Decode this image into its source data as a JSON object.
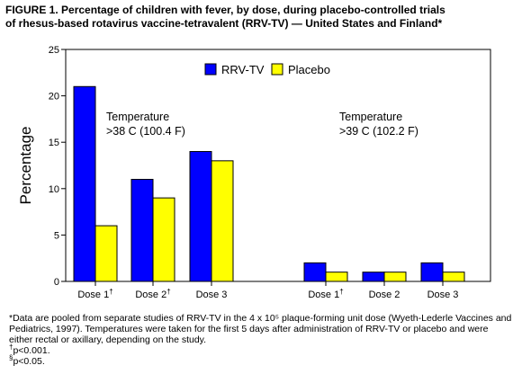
{
  "figure": {
    "title_line1": "FIGURE 1. Percentage of children with fever, by dose, during placebo-controlled trials",
    "title_line2": "of rhesus-based rotavirus vaccine-tetravalent (RRV-TV) — United States and Finland*"
  },
  "chart_data": {
    "type": "bar",
    "ylabel": "Percentage",
    "ylim": [
      0,
      25
    ],
    "yticks": [
      0,
      5,
      10,
      15,
      20,
      25
    ],
    "grid": false,
    "legend_position": "top-center",
    "categories": [
      {
        "label": "Dose 1",
        "sup": "†"
      },
      {
        "label": "Dose 2",
        "sup": "†"
      },
      {
        "label": "Dose 3",
        "sup": ""
      },
      {
        "label": "Dose 1",
        "sup": "†"
      },
      {
        "label": "Dose 2",
        "sup": ""
      },
      {
        "label": "Dose 3",
        "sup": ""
      }
    ],
    "groups": [
      {
        "line1": "Temperature",
        "line2": ">38 C (100.4 F)",
        "categories": [
          0,
          1,
          2
        ]
      },
      {
        "line1": "Temperature",
        "line2": ">39 C (102.2 F)",
        "categories": [
          3,
          4,
          5
        ]
      }
    ],
    "series": [
      {
        "name": "RRV-TV",
        "color": "#0000ff",
        "values": [
          21,
          11,
          14,
          2,
          1,
          2
        ]
      },
      {
        "name": "Placebo",
        "color": "#ffff00",
        "values": [
          6,
          9,
          13,
          1,
          1,
          1
        ]
      }
    ]
  },
  "footnotes": {
    "note1": "*Data are pooled from separate studies of RRV-TV in the 4 x 10⁵ plaque-forming unit dose (Wyeth-Lederle Vaccines and Pediatrics, 1997). Temperatures were taken for the first 5 days after administration of RRV-TV or placebo and were either rectal or axillary, depending on the study.",
    "note2_symbol": "†",
    "note2_text": "p<0.001.",
    "note3_symbol": "§",
    "note3_text": "p<0.05."
  }
}
